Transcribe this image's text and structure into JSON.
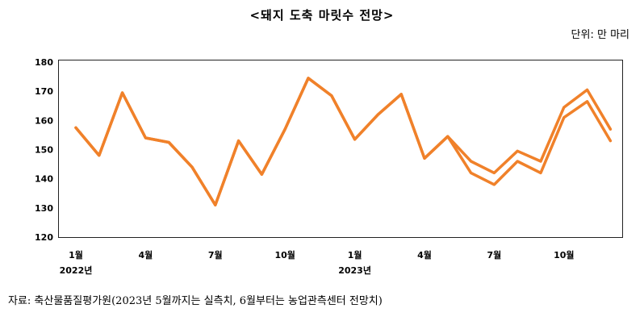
{
  "title": "<돼지 도축 마릿수 전망>",
  "unit_label": "단위: 만 마리",
  "source_note": "자료: 축산물품질평가원(2023년 5월까지는 실측치, 6월부터는 농업관측센터 전망치)",
  "colors": {
    "line": "#F0812A",
    "frame": "#222222"
  },
  "chart_data": {
    "type": "line",
    "title": "<돼지 도축 마릿수 전망>",
    "ylabel": "단위: 만 마리",
    "ylim": [
      120,
      180
    ],
    "yticks": [
      120,
      130,
      140,
      150,
      160,
      170,
      180
    ],
    "grid": false,
    "x": [
      "2022-01",
      "2022-02",
      "2022-03",
      "2022-04",
      "2022-05",
      "2022-06",
      "2022-07",
      "2022-08",
      "2022-09",
      "2022-10",
      "2022-11",
      "2022-12",
      "2023-01",
      "2023-02",
      "2023-03",
      "2023-04",
      "2023-05",
      "2023-06",
      "2023-07",
      "2023-08",
      "2023-09",
      "2023-10",
      "2023-11",
      "2023-12"
    ],
    "xtick_labels": [
      {
        "index": 0,
        "label": "1월"
      },
      {
        "index": 3,
        "label": "4월"
      },
      {
        "index": 6,
        "label": "7월"
      },
      {
        "index": 9,
        "label": "10월"
      },
      {
        "index": 12,
        "label": "1월"
      },
      {
        "index": 15,
        "label": "4월"
      },
      {
        "index": 18,
        "label": "7월"
      },
      {
        "index": 21,
        "label": "10월"
      }
    ],
    "year_labels": [
      {
        "index": 0,
        "label": "2022년"
      },
      {
        "index": 12,
        "label": "2023년"
      }
    ],
    "series": [
      {
        "values": [
          157.5,
          148.0,
          169.5,
          154.0,
          152.5,
          144.0,
          131.0,
          153.0,
          141.5,
          157.0,
          174.5,
          168.5,
          153.5,
          162.0,
          169.0,
          147.0,
          154.5,
          146.0,
          142.0,
          149.5,
          146.0,
          164.5,
          170.5,
          157.0
        ]
      },
      {
        "values": [
          157.5,
          148.0,
          169.5,
          154.0,
          152.5,
          144.0,
          131.0,
          153.0,
          141.5,
          157.0,
          174.5,
          168.5,
          153.5,
          162.0,
          169.0,
          147.0,
          154.5,
          142.0,
          138.0,
          146.0,
          142.0,
          161.0,
          166.5,
          153.0
        ]
      }
    ]
  }
}
